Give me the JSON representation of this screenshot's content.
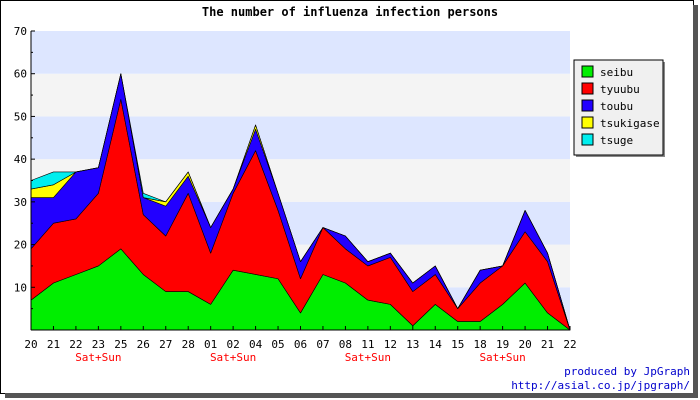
{
  "chart_data": {
    "type": "area",
    "stacked": true,
    "title": "The number of influenza infection persons",
    "categories": [
      "20",
      "21",
      "22",
      "23",
      "25",
      "26",
      "27",
      "28",
      "01",
      "02",
      "04",
      "05",
      "06",
      "07",
      "08",
      "11",
      "12",
      "13",
      "14",
      "15",
      "18",
      "19",
      "20",
      "21",
      "22"
    ],
    "ylim": [
      0,
      70
    ],
    "yticks": [
      10,
      20,
      30,
      40,
      50,
      60,
      70
    ],
    "weekend_notes": [
      {
        "index": 3,
        "label": "Sat+Sun"
      },
      {
        "index": 9,
        "label": "Sat+Sun"
      },
      {
        "index": 15,
        "label": "Sat+Sun"
      },
      {
        "index": 21,
        "label": "Sat+Sun"
      }
    ],
    "grid": "horizontal bands",
    "legend_position": "right",
    "series": [
      {
        "name": "seibu",
        "color": "#00ee00",
        "values": [
          7,
          11,
          13,
          15,
          19,
          13,
          9,
          9,
          6,
          14,
          13,
          12,
          4,
          13,
          11,
          7,
          6,
          1,
          6,
          2,
          2,
          6,
          11,
          4,
          0
        ]
      },
      {
        "name": "tyuubu",
        "color": "#ff0000",
        "values": [
          12,
          14,
          13,
          17,
          35,
          14,
          13,
          23,
          12,
          18,
          29,
          16,
          8,
          11,
          8,
          8,
          11,
          8,
          7,
          3,
          9,
          9,
          12,
          12,
          0
        ]
      },
      {
        "name": "toubu",
        "color": "#2200ff",
        "values": [
          12,
          6,
          11,
          6,
          6,
          4,
          7,
          4,
          6,
          1,
          5,
          4,
          4,
          0,
          3,
          1,
          1,
          2,
          2,
          0,
          3,
          0,
          5,
          2,
          0
        ]
      },
      {
        "name": "tsukigase",
        "color": "#ffff00",
        "values": [
          2,
          3,
          0,
          0,
          0,
          0,
          1,
          1,
          0,
          0,
          1,
          0,
          0,
          0,
          0,
          0,
          0,
          0,
          0,
          0,
          0,
          0,
          0,
          0,
          0
        ]
      },
      {
        "name": "tsuge",
        "color": "#00eeee",
        "values": [
          2,
          3,
          0,
          0,
          0,
          1,
          0,
          0,
          0,
          0,
          0,
          0,
          0,
          0,
          0,
          0,
          0,
          0,
          0,
          0,
          0,
          0,
          0,
          0,
          0
        ]
      }
    ]
  },
  "credits": {
    "line1": "produced by JpGraph",
    "line2": "http://asial.co.jp/jpgraph/"
  }
}
